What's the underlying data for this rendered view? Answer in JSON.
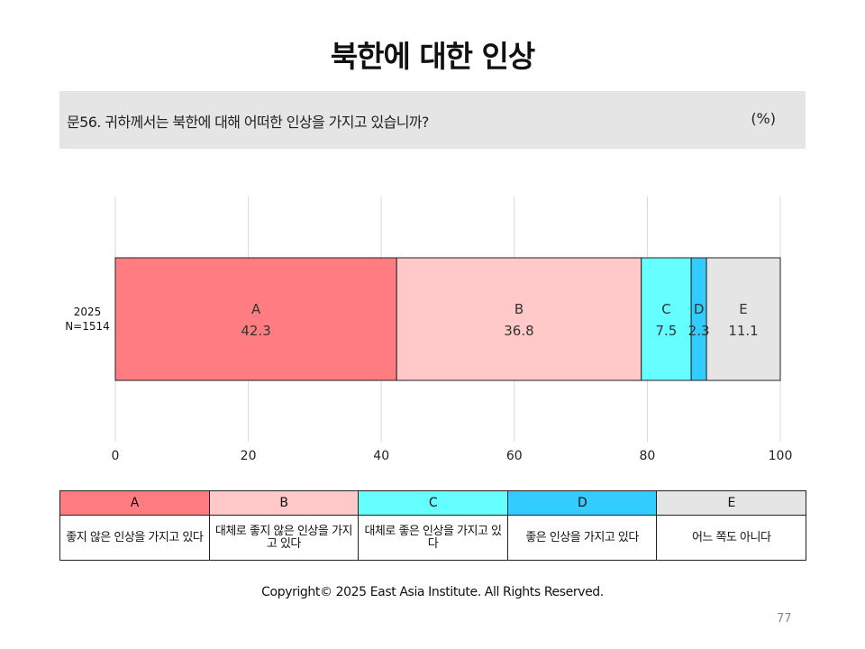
{
  "title": "북한에 대한 인상",
  "question": {
    "text": "문56. 귀하께서는 북한에 대해 어떠한 인상을 가지고 있습니까?",
    "unit": "(%)"
  },
  "chart_data": {
    "type": "bar",
    "orientation": "horizontal",
    "stacked": true,
    "row_label": [
      "2025",
      "N=1514"
    ],
    "series": [
      {
        "name": "A",
        "value": 42.3,
        "color": "#ff7c80"
      },
      {
        "name": "B",
        "value": 36.8,
        "color": "#ffc9c9"
      },
      {
        "name": "C",
        "value": 7.5,
        "color": "#66ffff"
      },
      {
        "name": "D",
        "value": 2.3,
        "color": "#33ccff"
      },
      {
        "name": "E",
        "value": 11.1,
        "color": "#e6e5e6"
      }
    ],
    "xlim": [
      0,
      100
    ],
    "xticks": [
      "0",
      "20",
      "40",
      "60",
      "80",
      "100"
    ],
    "grid": true
  },
  "legend": [
    {
      "key": "A",
      "label": "좋지 않은 인상을 가지고 있다",
      "color": "#ff7c80"
    },
    {
      "key": "B",
      "label": "대체로 좋지 않은 인상을 가지고 있다",
      "color": "#ffc9c9"
    },
    {
      "key": "C",
      "label": "대체로 좋은 인상을 가지고 있다",
      "color": "#66ffff"
    },
    {
      "key": "D",
      "label": "좋은 인상을 가지고 있다",
      "color": "#33ccff"
    },
    {
      "key": "E",
      "label": "어느 쪽도 아니다",
      "color": "#e6e5e6"
    }
  ],
  "footer": {
    "copyright": "Copyright© 2025 East Asia Institute. All Rights Reserved.",
    "page": "77"
  }
}
